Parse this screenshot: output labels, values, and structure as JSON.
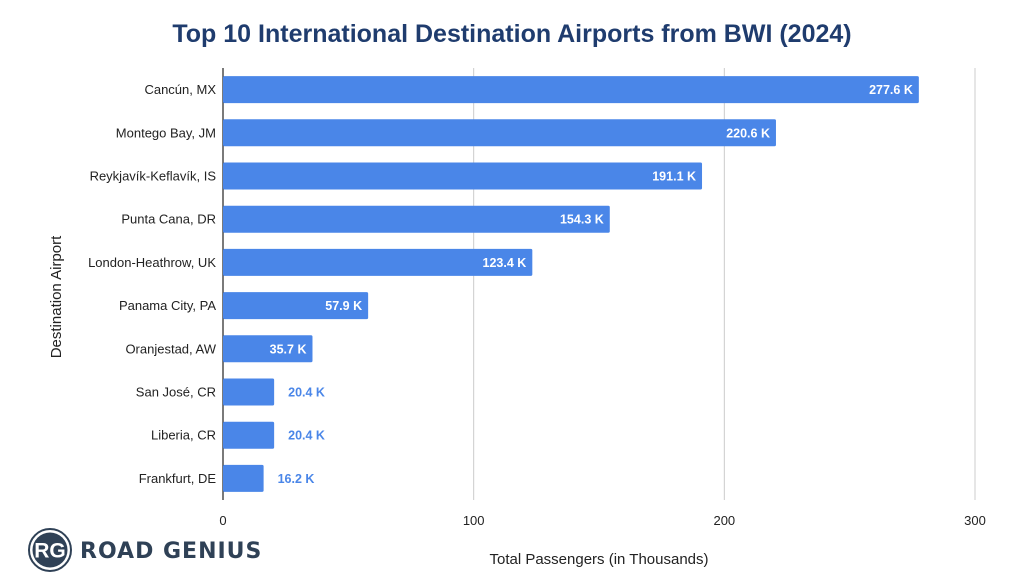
{
  "colors": {
    "bar": "#4a86e8",
    "title": "#1f3c6e",
    "grid": "#cccccc",
    "axis": "#333333",
    "outside_label": "#4a86e8",
    "logo_dark": "#2f4156"
  },
  "logo": {
    "monogram": "RG",
    "text": "ROAD GENIUS"
  },
  "chart_data": {
    "type": "bar",
    "orientation": "horizontal",
    "title": "Top 10 International Destination Airports from BWI (2024)",
    "xlabel": "Total Passengers (in Thousands)",
    "ylabel": "Destination Airport",
    "xlim": [
      0,
      300
    ],
    "xticks": [
      0,
      100,
      200,
      300
    ],
    "grid": true,
    "categories": [
      "Cancún, MX",
      "Montego Bay, JM",
      "Reykjavík-Keflavík, IS",
      "Punta Cana, DR",
      "London-Heathrow, UK",
      "Panama City, PA",
      "Oranjestad, AW",
      "San José, CR",
      "Liberia, CR",
      "Frankfurt, DE"
    ],
    "values": [
      277.6,
      220.6,
      191.1,
      154.3,
      123.4,
      57.9,
      35.7,
      20.4,
      20.4,
      16.2
    ],
    "data_labels": [
      "277.6 K",
      "220.6 K",
      "191.1 K",
      "154.3 K",
      "123.4 K",
      "57.9 K",
      "35.7 K",
      "20.4 K",
      "20.4 K",
      "16.2 K"
    ]
  }
}
